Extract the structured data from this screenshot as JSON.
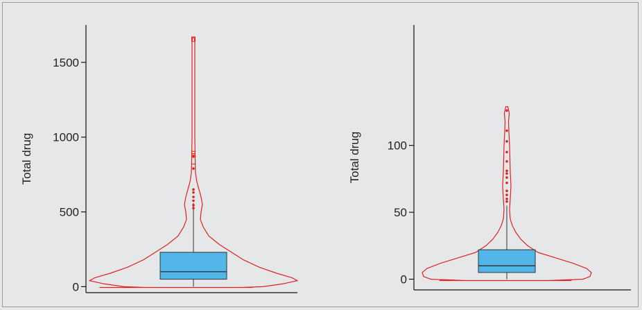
{
  "chart_data": [
    {
      "type": "violin",
      "ylabel": "Total drug",
      "ylim": [
        -40,
        1750
      ],
      "yticks": [
        0,
        500,
        1000,
        1500
      ],
      "box": {
        "q1": 50,
        "median": 100,
        "q3": 230
      },
      "whisker_high": 560,
      "outliers": [
        525,
        545,
        575,
        600,
        630,
        650,
        790,
        870
      ],
      "outlier_boxes": [
        [
          820,
          880
        ],
        [
          890,
          905
        ],
        [
          1640,
          1670
        ]
      ],
      "violin_color": "#e02020",
      "box_color": "#52b6e8"
    },
    {
      "type": "violin",
      "ylabel": "Total drug",
      "ylim": [
        -8,
        190
      ],
      "yticks": [
        0,
        50,
        100
      ],
      "box": {
        "q1": 5,
        "median": 10,
        "q3": 22
      },
      "whisker_high": 55,
      "outliers": [
        58,
        60,
        63,
        66,
        72,
        76,
        79,
        81,
        88,
        95,
        103,
        111,
        126
      ],
      "violin_color": "#e02020",
      "box_color": "#52b6e8"
    }
  ]
}
